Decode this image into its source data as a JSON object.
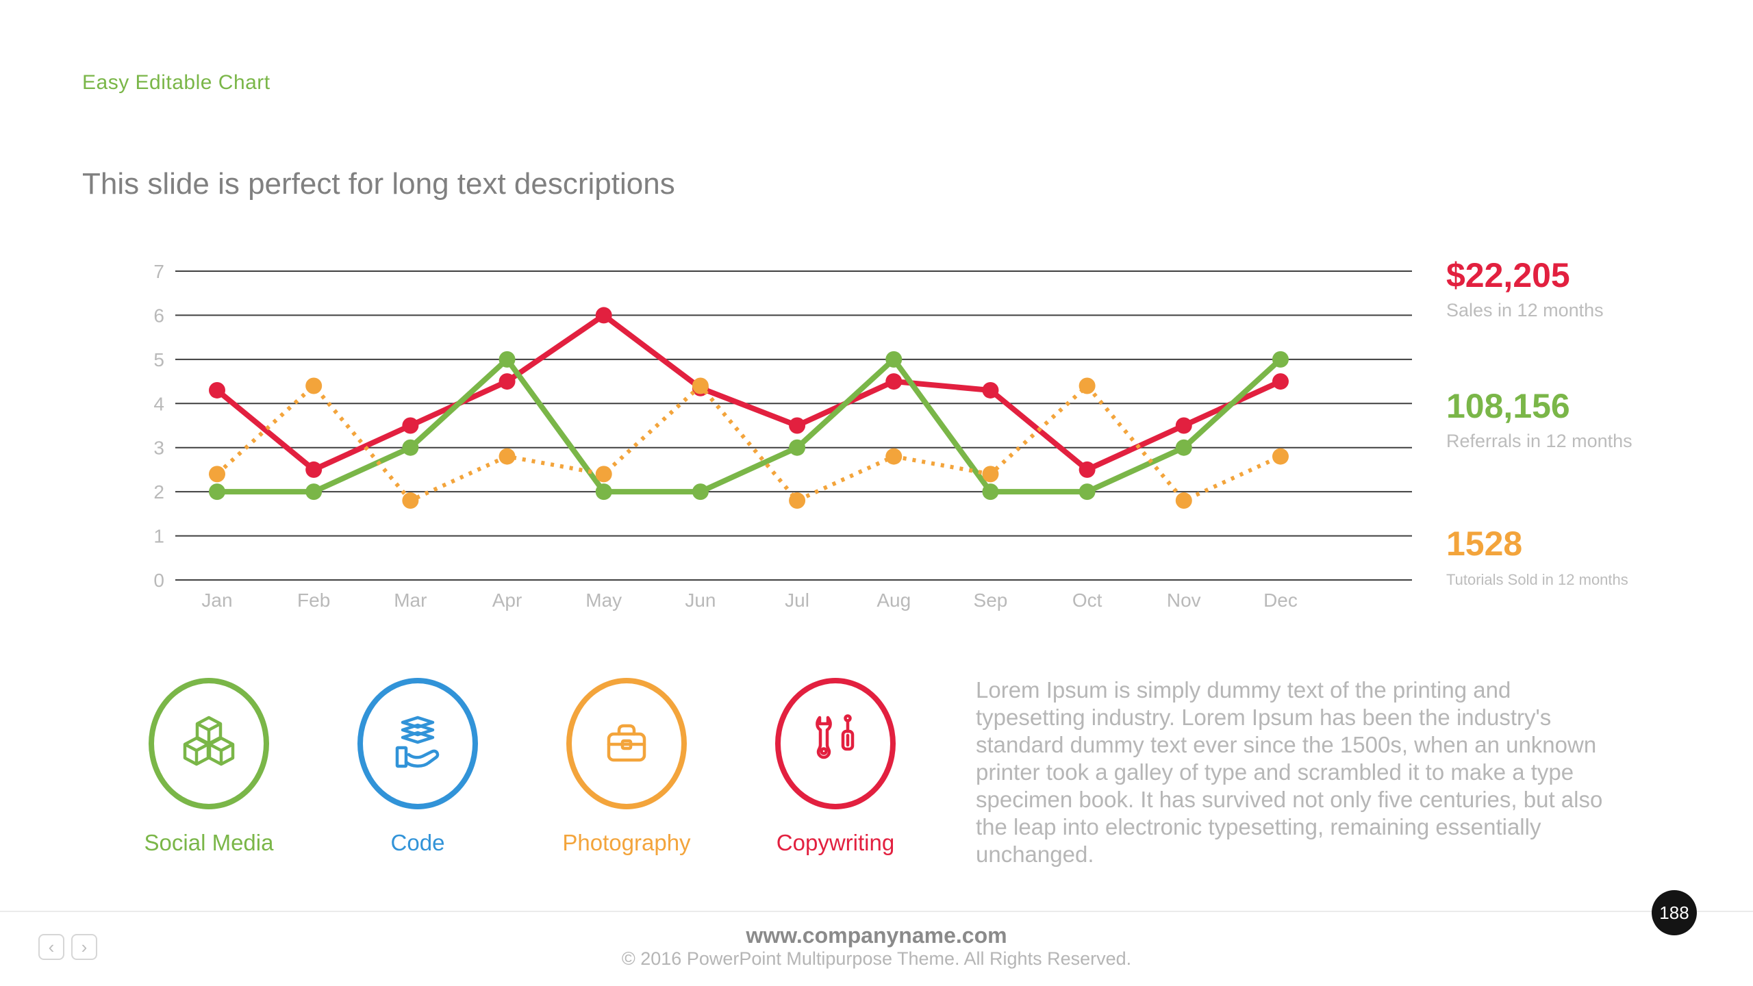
{
  "slide": {
    "title": "Easy Editable Chart",
    "subtitle": "This slide is perfect for long text descriptions"
  },
  "chart_data": {
    "type": "line",
    "title": "",
    "xlabel": "",
    "ylabel": "",
    "categories": [
      "Jan",
      "Feb",
      "Mar",
      "Apr",
      "May",
      "Jun",
      "Jul",
      "Aug",
      "Sep",
      "Oct",
      "Nov",
      "Dec"
    ],
    "series": [
      {
        "name": "Sales",
        "color": "#e2203f",
        "style": "solid",
        "values": [
          4.3,
          2.5,
          3.5,
          4.5,
          6,
          4.35,
          3.5,
          4.5,
          4.3,
          2.5,
          3.5,
          4.5
        ]
      },
      {
        "name": "Referrals",
        "color": "#7ab648",
        "style": "solid",
        "values": [
          2,
          2,
          3,
          5,
          2,
          2,
          3,
          5,
          2,
          2,
          3,
          5
        ]
      },
      {
        "name": "Tutorials Sold",
        "color": "#f3a43b",
        "style": "dotted",
        "values": [
          2.4,
          4.4,
          1.8,
          2.8,
          2.4,
          4.4,
          1.8,
          2.8,
          2.4,
          4.4,
          1.8,
          2.8
        ]
      }
    ],
    "ylim": [
      0,
      7
    ],
    "yticks": [
      0,
      1,
      2,
      3,
      4,
      5,
      6,
      7
    ],
    "grid": true,
    "legend": "none"
  },
  "stats": [
    {
      "value": "$22,205",
      "label": "Sales in 12 months",
      "color": "#e2203f"
    },
    {
      "value": "108,156",
      "label": "Referrals in 12 months",
      "color": "#7ab648"
    },
    {
      "value": "1528",
      "label": "Tutorials Sold  in 12 months",
      "color": "#f3a43b"
    }
  ],
  "features": [
    {
      "label": "Social Media",
      "color": "#7ab648",
      "icon": "cubes-icon"
    },
    {
      "label": "Code",
      "color": "#3193d8",
      "icon": "hand-layers-icon"
    },
    {
      "label": "Photography",
      "color": "#f3a43b",
      "icon": "briefcase-icon"
    },
    {
      "label": "Copywriting",
      "color": "#e2203f",
      "icon": "wrench-screwdriver-icon"
    }
  ],
  "description": "Lorem Ipsum is simply dummy text of the printing and typesetting industry. Lorem Ipsum has been the industry's standard dummy text ever since the 1500s, when an unknown printer took a galley of type and scrambled it to make a type specimen book. It has survived not only five centuries, but also the leap into electronic typesetting, remaining essentially unchanged.",
  "footer": {
    "website": "www.companyname.com",
    "copyright": "© 2016 PowerPoint Multipurpose Theme. All Rights Reserved."
  },
  "pagination": {
    "page": "188",
    "prev": "‹",
    "next": "›"
  }
}
